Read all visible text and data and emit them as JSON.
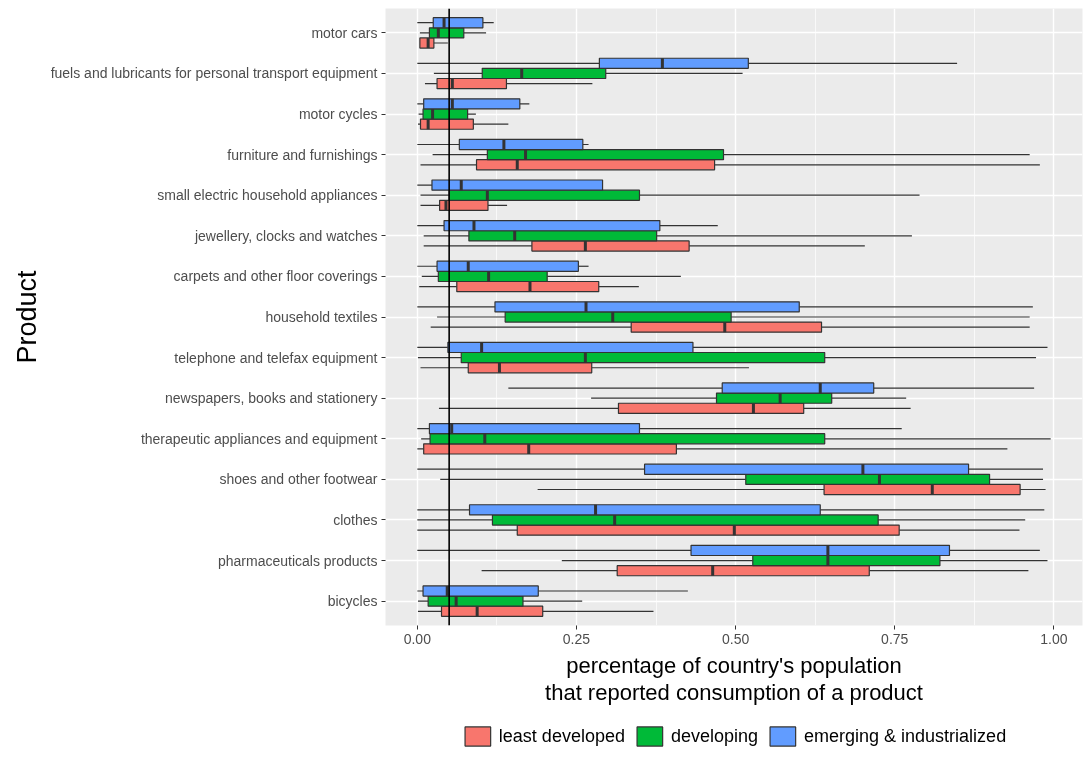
{
  "chart_data": {
    "type": "box",
    "orientation": "horizontal",
    "xlabel": "percentage of country's population\nthat reported consumption of a product",
    "ylabel": "Product",
    "categories": [
      "motor cars",
      "fuels and lubricants for personal transport equipment",
      "motor cycles",
      "furniture and furnishings",
      "small electric household appliances",
      "jewellery, clocks and watches",
      "carpets and other floor coverings",
      "household textiles",
      "telephone and telefax equipment",
      "newspapers, books and stationery",
      "therapeutic appliances and equipment",
      "shoes and other footwear",
      "clothes",
      "pharmaceuticals products",
      "bicycles"
    ],
    "xlim": [
      -0.05,
      1.045
    ],
    "xticks": [
      {
        "value": 0,
        "label": "0.00"
      },
      0.25,
      {
        "value": 0.5,
        "label": "0.50"
      },
      0.75,
      {
        "value": 1,
        "label": "1.00"
      }
    ],
    "grid": true,
    "legend": "bottom",
    "ref_lines": [
      {
        "axis": "x",
        "value": 0.05,
        "color": "#000000"
      }
    ],
    "series": [
      {
        "name": "least developed",
        "color": "#f8766d",
        "boxes": [
          {
            "low": 0.004,
            "q1": 0.004,
            "median": 0.017,
            "q3": 0.026,
            "high": 0.048
          },
          {
            "low": 0.012,
            "q1": 0.031,
            "median": 0.055,
            "q3": 0.14,
            "high": 0.275
          },
          {
            "low": 0.001,
            "q1": 0.005,
            "median": 0.017,
            "q3": 0.088,
            "high": 0.143
          },
          {
            "low": 0.005,
            "q1": 0.093,
            "median": 0.157,
            "q3": 0.467,
            "high": 0.978
          },
          {
            "low": 0.005,
            "q1": 0.035,
            "median": 0.045,
            "q3": 0.111,
            "high": 0.141
          },
          {
            "low": 0.01,
            "q1": 0.18,
            "median": 0.264,
            "q3": 0.427,
            "high": 0.703
          },
          {
            "low": 0.003,
            "q1": 0.062,
            "median": 0.177,
            "q3": 0.285,
            "high": 0.348
          },
          {
            "low": 0.021,
            "q1": 0.336,
            "median": 0.483,
            "q3": 0.635,
            "high": 0.962
          },
          {
            "low": 0.005,
            "q1": 0.08,
            "median": 0.129,
            "q3": 0.274,
            "high": 0.521
          },
          {
            "low": 0.034,
            "q1": 0.316,
            "median": 0.528,
            "q3": 0.607,
            "high": 0.775
          },
          {
            "low": 0,
            "q1": 0.01,
            "median": 0.175,
            "q3": 0.407,
            "high": 0.927
          },
          {
            "low": 0.189,
            "q1": 0.639,
            "median": 0.809,
            "q3": 0.947,
            "high": 0.987
          },
          {
            "low": 0,
            "q1": 0.157,
            "median": 0.498,
            "q3": 0.757,
            "high": 0.946
          },
          {
            "low": 0.101,
            "q1": 0.314,
            "median": 0.464,
            "q3": 0.71,
            "high": 0.96
          },
          {
            "low": 0.001,
            "q1": 0.038,
            "median": 0.094,
            "q3": 0.197,
            "high": 0.371
          }
        ]
      },
      {
        "name": "developing",
        "color": "#00ba38",
        "boxes": [
          {
            "low": 0.004,
            "q1": 0.019,
            "median": 0.033,
            "q3": 0.073,
            "high": 0.108
          },
          {
            "low": 0.026,
            "q1": 0.102,
            "median": 0.164,
            "q3": 0.296,
            "high": 0.511
          },
          {
            "low": 0.002,
            "q1": 0.009,
            "median": 0.024,
            "q3": 0.079,
            "high": 0.092
          },
          {
            "low": 0.024,
            "q1": 0.11,
            "median": 0.17,
            "q3": 0.481,
            "high": 0.962
          },
          {
            "low": 0.005,
            "q1": 0.05,
            "median": 0.11,
            "q3": 0.349,
            "high": 0.789
          },
          {
            "low": 0.01,
            "q1": 0.081,
            "median": 0.153,
            "q3": 0.376,
            "high": 0.777
          },
          {
            "low": 0.007,
            "q1": 0.033,
            "median": 0.112,
            "q3": 0.204,
            "high": 0.414
          },
          {
            "low": 0.031,
            "q1": 0.138,
            "median": 0.307,
            "q3": 0.493,
            "high": 0.962
          },
          {
            "low": 0.001,
            "q1": 0.069,
            "median": 0.264,
            "q3": 0.64,
            "high": 0.972
          },
          {
            "low": 0.273,
            "q1": 0.47,
            "median": 0.57,
            "q3": 0.651,
            "high": 0.768
          },
          {
            "low": 0.006,
            "q1": 0.02,
            "median": 0.106,
            "q3": 0.64,
            "high": 0.995
          },
          {
            "low": 0.036,
            "q1": 0.516,
            "median": 0.726,
            "q3": 0.899,
            "high": 0.983
          },
          {
            "low": 0,
            "q1": 0.118,
            "median": 0.31,
            "q3": 0.724,
            "high": 0.955
          },
          {
            "low": 0.227,
            "q1": 0.527,
            "median": 0.645,
            "q3": 0.821,
            "high": 0.99
          },
          {
            "low": 0.001,
            "q1": 0.017,
            "median": 0.061,
            "q3": 0.166,
            "high": 0.259
          }
        ]
      },
      {
        "name": "emerging & industrialized",
        "color": "#619cff",
        "boxes": [
          {
            "low": 0,
            "q1": 0.025,
            "median": 0.042,
            "q3": 0.103,
            "high": 0.12
          },
          {
            "low": 0,
            "q1": 0.286,
            "median": 0.385,
            "q3": 0.52,
            "high": 0.848
          },
          {
            "low": 0,
            "q1": 0.01,
            "median": 0.055,
            "q3": 0.161,
            "high": 0.176
          },
          {
            "low": 0,
            "q1": 0.066,
            "median": 0.136,
            "q3": 0.26,
            "high": 0.269
          },
          {
            "low": 0,
            "q1": 0.023,
            "median": 0.069,
            "q3": 0.291,
            "high": 0.291
          },
          {
            "low": 0,
            "q1": 0.042,
            "median": 0.089,
            "q3": 0.381,
            "high": 0.472
          },
          {
            "low": 0,
            "q1": 0.031,
            "median": 0.08,
            "q3": 0.253,
            "high": 0.269
          },
          {
            "low": 0,
            "q1": 0.122,
            "median": 0.265,
            "q3": 0.6,
            "high": 0.967
          },
          {
            "low": 0,
            "q1": 0.048,
            "median": 0.101,
            "q3": 0.433,
            "high": 0.99
          },
          {
            "low": 0.143,
            "q1": 0.479,
            "median": 0.633,
            "q3": 0.717,
            "high": 0.969
          },
          {
            "low": 0,
            "q1": 0.019,
            "median": 0.054,
            "q3": 0.349,
            "high": 0.761
          },
          {
            "low": 0,
            "q1": 0.357,
            "median": 0.7,
            "q3": 0.866,
            "high": 0.983
          },
          {
            "low": 0,
            "q1": 0.082,
            "median": 0.28,
            "q3": 0.633,
            "high": 0.985
          },
          {
            "low": 0,
            "q1": 0.43,
            "median": 0.645,
            "q3": 0.836,
            "high": 0.978
          },
          {
            "low": 0,
            "q1": 0.009,
            "median": 0.047,
            "q3": 0.19,
            "high": 0.425
          }
        ]
      }
    ]
  }
}
